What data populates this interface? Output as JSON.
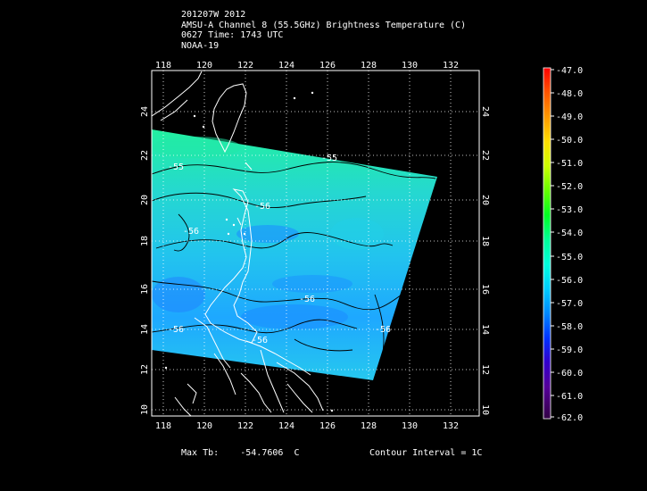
{
  "header": {
    "storm_line": "201207W 2012",
    "product_line": "AMSU-A Channel 8 (55.5GHz) Brightness Temperature (C)",
    "time_line": "0627 Time: 1743 UTC",
    "satellite_line": "NOAA-19"
  },
  "map": {
    "lon_ticks": [
      "118",
      "120",
      "122",
      "124",
      "126",
      "128",
      "130",
      "132"
    ],
    "lat_ticks": [
      "10",
      "12",
      "14",
      "16",
      "18",
      "20",
      "22",
      "24"
    ],
    "contour_labels": [
      "-55",
      "-55",
      "-56",
      "-56",
      "-56",
      "-56",
      "-56",
      "-56"
    ]
  },
  "colorbar": {
    "labels": [
      "-47.0",
      "-48.0",
      "-49.0",
      "-50.0",
      "-51.0",
      "-52.0",
      "-53.0",
      "-54.0",
      "-55.0",
      "-56.0",
      "-57.0",
      "-58.0",
      "-59.0",
      "-60.0",
      "-61.0",
      "-62.0"
    ],
    "colors": [
      "#ff0000",
      "#ff5500",
      "#ff9900",
      "#ffdd00",
      "#ccff00",
      "#66ff00",
      "#00ff22",
      "#00ff99",
      "#00ffdd",
      "#00ccff",
      "#0088ff",
      "#0033ff",
      "#3300cc",
      "#550099",
      "#440066",
      "#330044"
    ]
  },
  "footer": {
    "max_tb_label": "Max Tb:",
    "max_tb_value": "-54.7606",
    "max_tb_unit": "C",
    "contour_label": "Contour Interval = 1C"
  }
}
